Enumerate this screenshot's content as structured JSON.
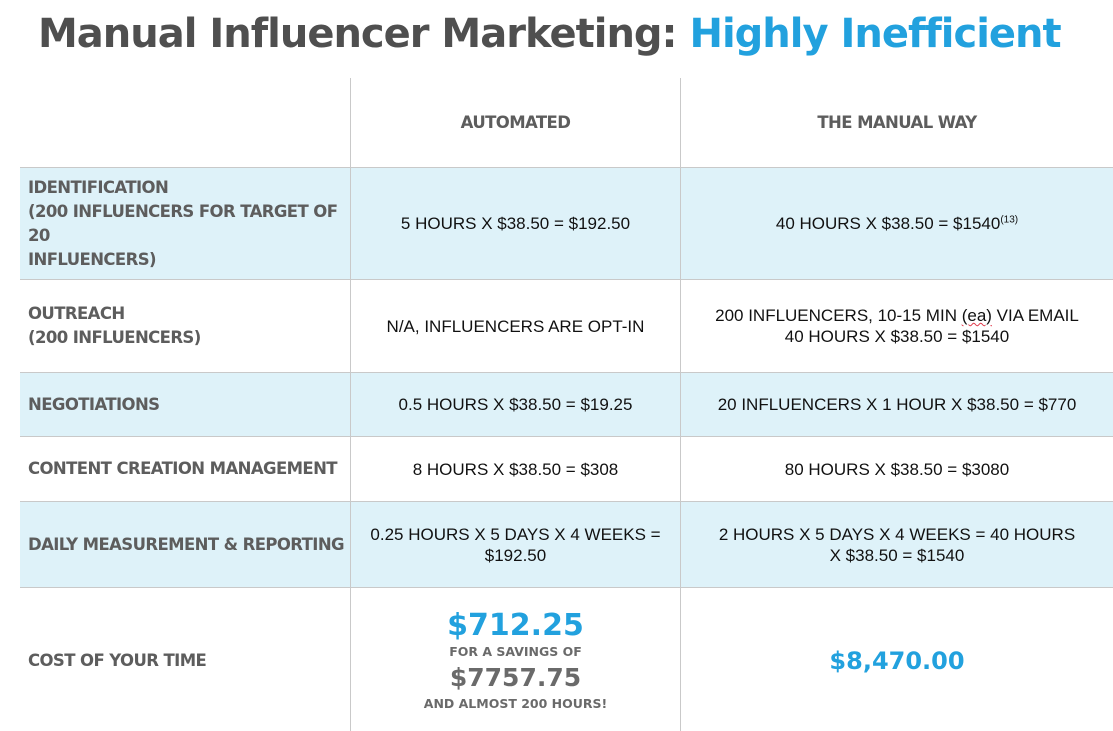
{
  "title": {
    "prefix": "Manual Influencer Marketing:",
    "accent": "Highly Inefficient"
  },
  "colors": {
    "accent": "#22a1de",
    "row_shade": "#def2f9",
    "label_grey": "#5d5d5d"
  },
  "headers": {
    "automated": "AUTOMATED",
    "manual": "THE MANUAL WAY"
  },
  "rows": [
    {
      "label_lines": [
        "IDENTIFICATION",
        "(200 INFLUENCERS FOR TARGET OF 20",
        "INFLUENCERS)"
      ],
      "automated": "5 HOURS X $38.50 = $192.50",
      "manual": "40 HOURS X $38.50 = $1540",
      "manual_sup": "(13)"
    },
    {
      "label_lines": [
        "OUTREACH",
        "(200 INFLUENCERS)"
      ],
      "automated": "N/A, INFLUENCERS ARE OPT-IN",
      "manual_line1_a": "200 INFLUENCERS, 10-15 MIN ",
      "manual_line1_b": "(ea)",
      "manual_line1_c": " VIA EMAIL",
      "manual_line2": "40 HOURS X $38.50 = $1540"
    },
    {
      "label": "NEGOTIATIONS",
      "automated": "0.5 HOURS X $38.50 = $19.25",
      "manual": "20 INFLUENCERS X 1 HOUR X $38.50 = $770"
    },
    {
      "label": "CONTENT CREATION MANAGEMENT",
      "automated": "8 HOURS X $38.50 = $308",
      "manual": "80 HOURS X $38.50 = $3080"
    },
    {
      "label": "DAILY MEASUREMENT & REPORTING",
      "automated_line1": "0.25 HOURS X 5 DAYS X 4 WEEKS =",
      "automated_line2": "$192.50",
      "manual_line1": "2 HOURS X 5 DAYS X 4 WEEKS = 40 HOURS",
      "manual_line2": "X $38.50 = $1540"
    }
  ],
  "cost": {
    "label": "COST OF YOUR TIME",
    "automated_total": "$712.25",
    "savings_label": "FOR A SAVINGS OF",
    "savings_amount": "$7757.75",
    "hours_note": "AND ALMOST 200 HOURS!",
    "manual_total": "$8,470.00"
  }
}
